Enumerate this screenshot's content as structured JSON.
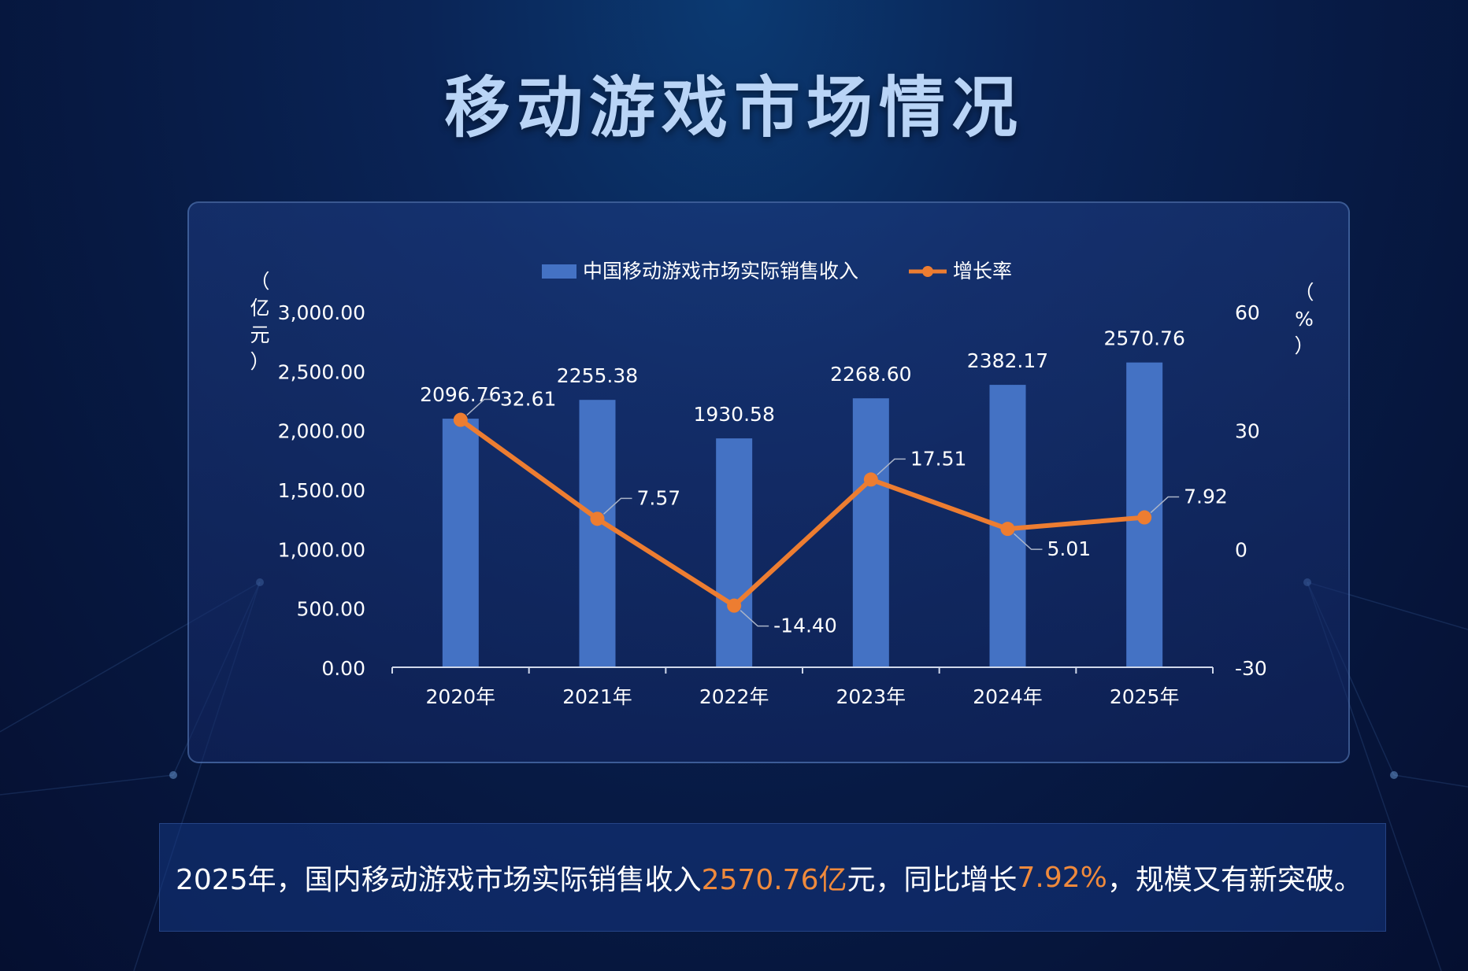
{
  "title": "移动游戏市场情况",
  "colors": {
    "bar": "#4472c4",
    "line": "#ed7d31",
    "text": "#ffffff",
    "axis": "#d0d8ea"
  },
  "chart_data": {
    "type": "bar+line",
    "categories": [
      "2020年",
      "2021年",
      "2022年",
      "2023年",
      "2024年",
      "2025年"
    ],
    "series": [
      {
        "name": "中国移动游戏市场实际销售收入",
        "type": "bar",
        "axis": "left",
        "values": [
          2096.76,
          2255.38,
          1930.58,
          2268.6,
          2382.17,
          2570.76
        ],
        "labels": [
          "2096.76",
          "2255.38",
          "1930.58",
          "2268.60",
          "2382.17",
          "2570.76"
        ]
      },
      {
        "name": "增长率",
        "type": "line",
        "axis": "right",
        "values": [
          32.61,
          7.57,
          -14.4,
          17.51,
          5.01,
          7.92
        ],
        "labels": [
          "32.61",
          "7.57",
          "-14.40",
          "17.51",
          "5.01",
          "7.92"
        ]
      }
    ],
    "y_left": {
      "label": "（亿元）",
      "range": [
        0,
        3000
      ],
      "ticks": [
        0,
        500,
        1000,
        1500,
        2000,
        2500,
        3000
      ],
      "tick_labels": [
        "0.00",
        "500.00",
        "1,000.00",
        "1,500.00",
        "2,000.00",
        "2,500.00",
        "3,000.00"
      ]
    },
    "y_right": {
      "label": "（%）",
      "range": [
        -30,
        60
      ],
      "ticks": [
        -30,
        0,
        30,
        60
      ],
      "tick_labels": [
        "-30",
        "0",
        "30",
        "60"
      ]
    },
    "legend_position": "top-center",
    "grid": false
  },
  "summary": {
    "part1": "2025年，国内移动游戏市场实际销售收入",
    "highlight1": "2570.76亿",
    "part2": "元，同比增长",
    "highlight2": "7.92%",
    "part3": "，规模又有新突破。"
  }
}
